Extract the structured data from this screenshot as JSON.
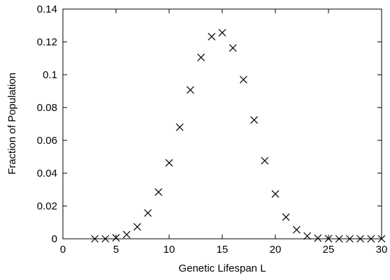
{
  "chart_data": {
    "type": "scatter",
    "title": "",
    "xlabel": "Genetic Lifespan L",
    "ylabel": "Fraction of Population",
    "xlim": [
      0,
      30
    ],
    "ylim": [
      0,
      0.14
    ],
    "grid": false,
    "marker": "x",
    "colors": {
      "marker": "#000000",
      "axis": "#000000"
    },
    "x_ticks": [
      0,
      5,
      10,
      15,
      20,
      25,
      30
    ],
    "x_tick_labels": [
      "0",
      "5",
      "10",
      "15",
      "20",
      "25",
      "30"
    ],
    "y_ticks": [
      0,
      0.02,
      0.04,
      0.06,
      0.08,
      0.1,
      0.12,
      0.14
    ],
    "y_tick_labels": [
      "0",
      "0.02",
      "0.04",
      "0.06",
      "0.08",
      "0.1",
      "0.12",
      "0.14"
    ],
    "series": [
      {
        "x": [
          3,
          4,
          5,
          6,
          7,
          8,
          9,
          10,
          11,
          12,
          13,
          14,
          15,
          16,
          17,
          18,
          19,
          20,
          21,
          22,
          23,
          24,
          25,
          26,
          27,
          28,
          29,
          30
        ],
        "y": [
          0.0,
          0.0,
          0.0006,
          0.0026,
          0.0073,
          0.0157,
          0.0285,
          0.0463,
          0.068,
          0.0907,
          0.1105,
          0.1232,
          0.1256,
          0.1163,
          0.097,
          0.0724,
          0.0476,
          0.0273,
          0.0132,
          0.0055,
          0.0017,
          0.0004,
          0.0001,
          0.0,
          0.0,
          0.0,
          0.0,
          0.0
        ]
      }
    ]
  }
}
